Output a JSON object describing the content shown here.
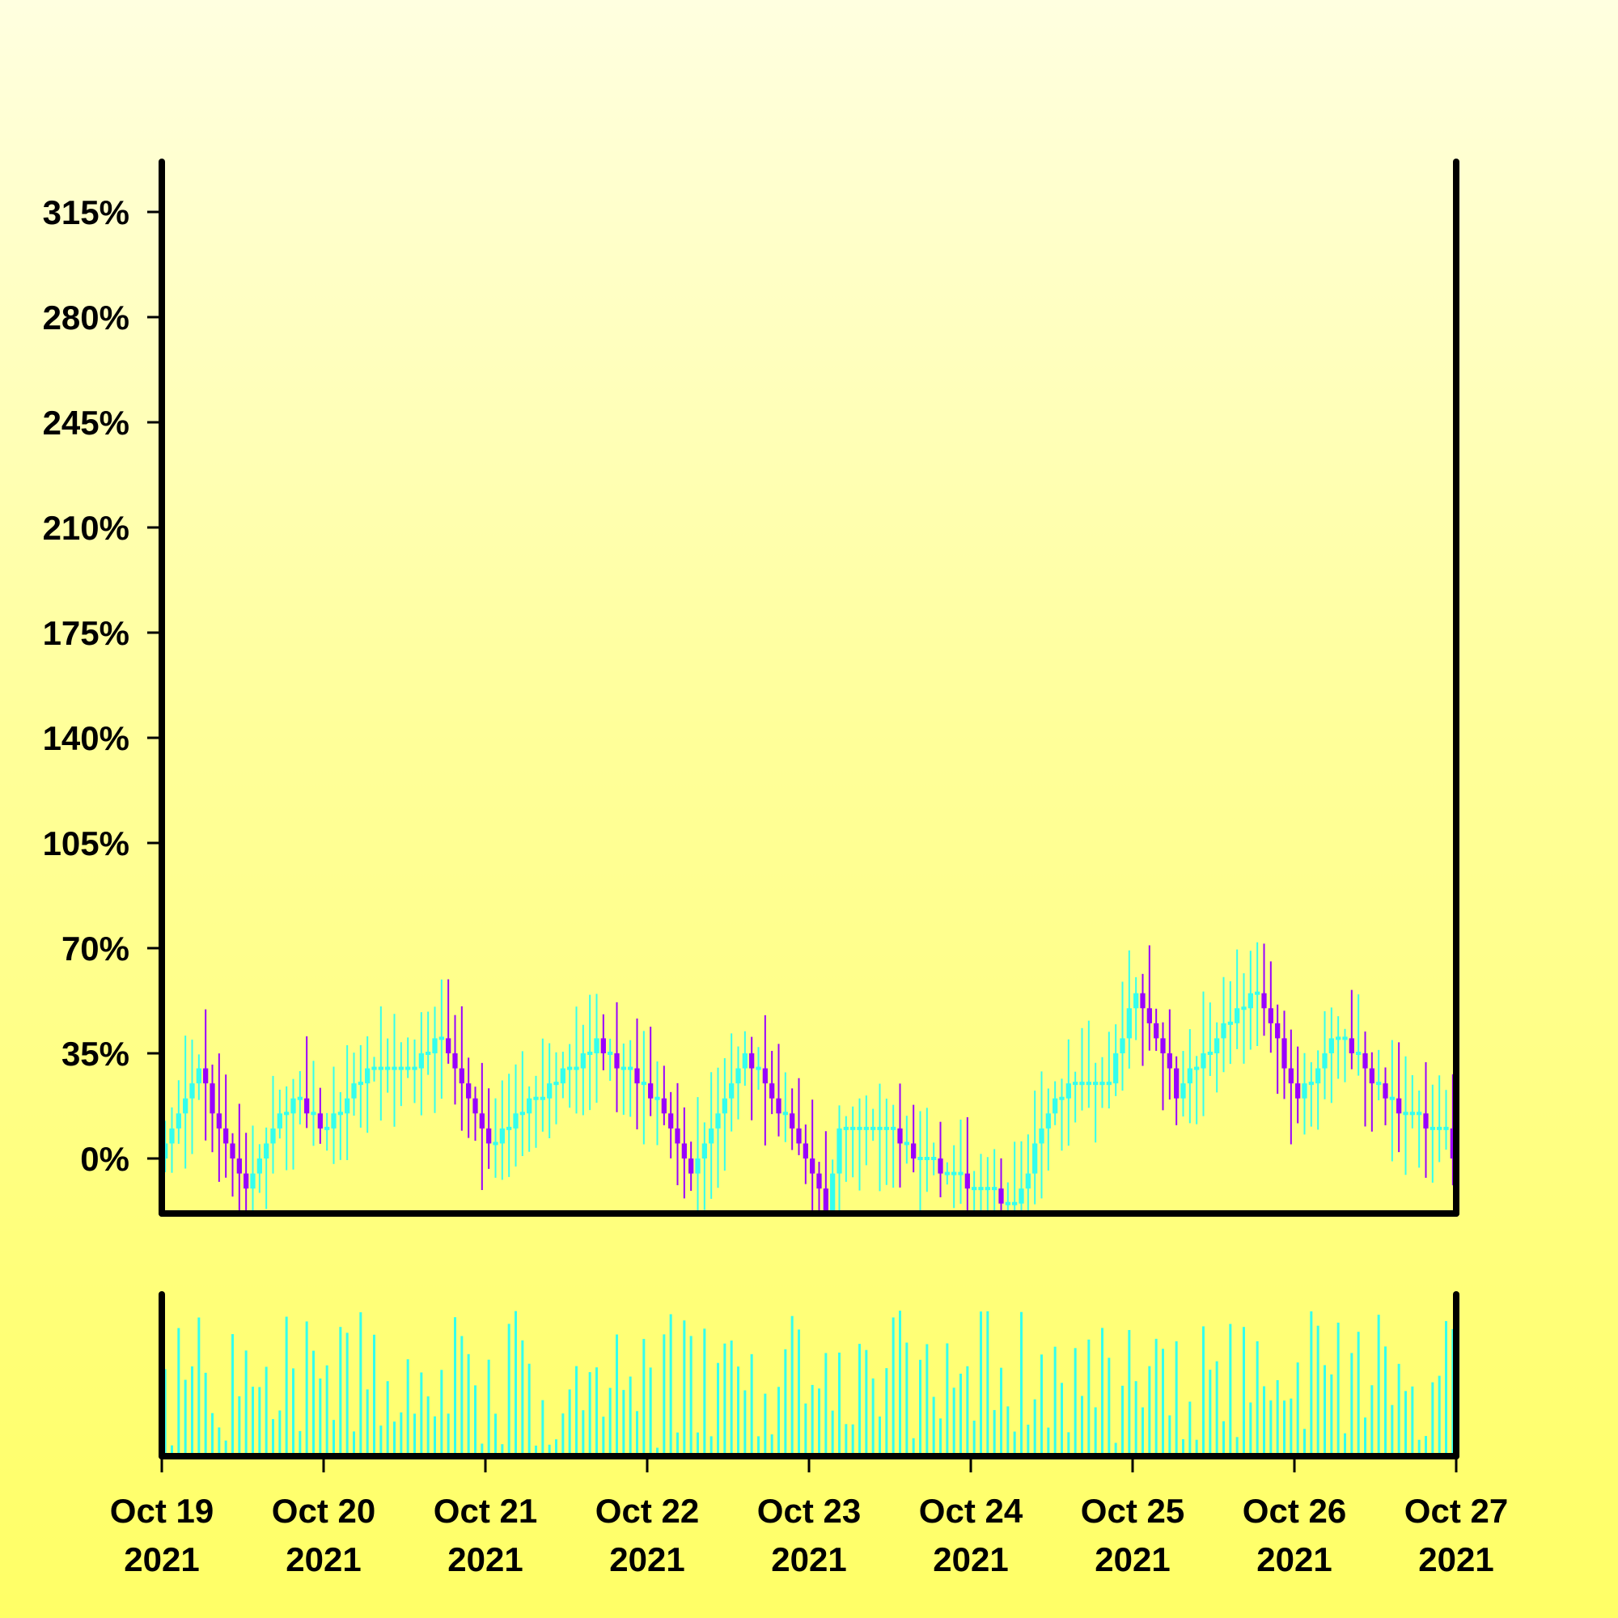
{
  "chart_data": {
    "type": "candlestick",
    "title": "",
    "xlabel": "",
    "ylabel": "",
    "ylim": [
      -15,
      330
    ],
    "y_tick_values": [
      0,
      35,
      70,
      105,
      140,
      175,
      210,
      245,
      280,
      315
    ],
    "y_tick_labels": [
      "0%",
      "35%",
      "70%",
      "105%",
      "140%",
      "175%",
      "210%",
      "245%",
      "280%",
      "315%"
    ],
    "x_range": [
      "2021-10-19",
      "2021-10-27"
    ],
    "x_tick_labels": [
      {
        "line1": "Oct 19",
        "line2": "2021"
      },
      {
        "line1": "Oct 20",
        "line2": "2021"
      },
      {
        "line1": "Oct 21",
        "line2": "2021"
      },
      {
        "line1": "Oct 22",
        "line2": "2021"
      },
      {
        "line1": "Oct 23",
        "line2": "2021"
      },
      {
        "line1": "Oct 24",
        "line2": "2021"
      },
      {
        "line1": "Oct 25",
        "line2": "2021"
      },
      {
        "line1": "Oct 26",
        "line2": "2021"
      },
      {
        "line1": "Oct 27",
        "line2": "2021"
      }
    ],
    "candle_interval_hours": 1,
    "close_path_anchors": [
      {
        "x": "2021-10-19 00:00",
        "y": 5
      },
      {
        "x": "2021-10-19 05:00",
        "y": 28
      },
      {
        "x": "2021-10-19 12:00",
        "y": -10
      },
      {
        "x": "2021-10-19 19:00",
        "y": 22
      },
      {
        "x": "2021-10-20 00:00",
        "y": 10
      },
      {
        "x": "2021-10-20 06:00",
        "y": 30
      },
      {
        "x": "2021-10-20 12:00",
        "y": 28
      },
      {
        "x": "2021-10-20 17:00",
        "y": 40
      },
      {
        "x": "2021-10-21 00:00",
        "y": 3
      },
      {
        "x": "2021-10-21 06:00",
        "y": 18
      },
      {
        "x": "2021-10-21 16:00",
        "y": 38
      },
      {
        "x": "2021-10-22 00:00",
        "y": 22
      },
      {
        "x": "2021-10-22 06:00",
        "y": -5
      },
      {
        "x": "2021-10-22 14:00",
        "y": 35
      },
      {
        "x": "2021-10-22 22:00",
        "y": 5
      },
      {
        "x": "2021-10-23 02:00",
        "y": -18
      },
      {
        "x": "2021-10-23 04:00",
        "y": 12
      },
      {
        "x": "2021-10-23 10:00",
        "y": 12
      },
      {
        "x": "2021-10-23 16:00",
        "y": 0
      },
      {
        "x": "2021-10-24 00:00",
        "y": -10
      },
      {
        "x": "2021-10-24 06:00",
        "y": -15
      },
      {
        "x": "2021-10-24 12:00",
        "y": 22
      },
      {
        "x": "2021-10-24 20:00",
        "y": 25
      },
      {
        "x": "2021-10-25 00:00",
        "y": 55
      },
      {
        "x": "2021-10-25 06:00",
        "y": 22
      },
      {
        "x": "2021-10-25 12:00",
        "y": 40
      },
      {
        "x": "2021-10-25 18:00",
        "y": 55
      },
      {
        "x": "2021-10-26 00:00",
        "y": 20
      },
      {
        "x": "2021-10-26 06:00",
        "y": 42
      },
      {
        "x": "2021-10-26 14:00",
        "y": 18
      },
      {
        "x": "2021-10-26 22:00",
        "y": 8
      },
      {
        "x": "2021-10-27 00:00",
        "y": -5
      }
    ],
    "colors": {
      "up": "#33ffee",
      "down": "#9900ff",
      "volume": "#33ffee",
      "axis": "#000000"
    },
    "grid": false,
    "legend": "none",
    "volume_panel": true
  }
}
